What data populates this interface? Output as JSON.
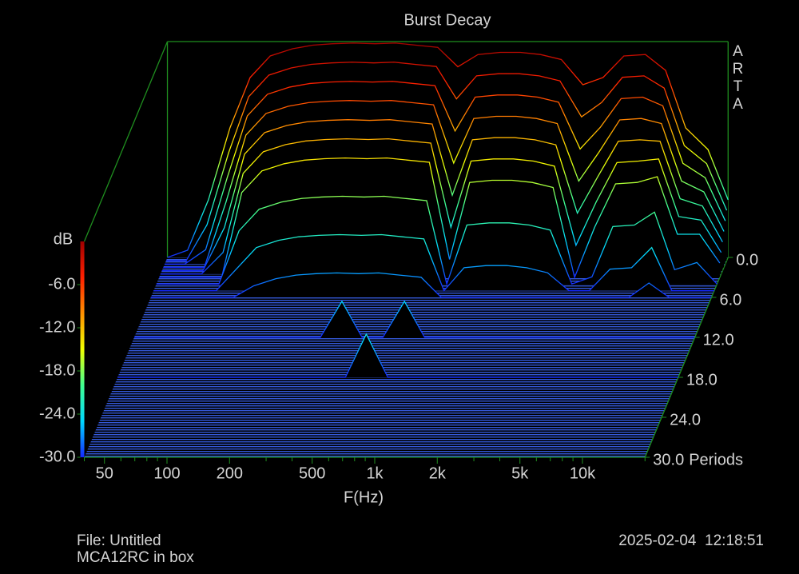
{
  "chart_data": {
    "type": "waterfall",
    "title": "Burst Decay",
    "watermark": "ARTA",
    "xlabel": "F(Hz)",
    "ylabel": "Periods",
    "zlabel": "dB",
    "file": "File: Untitled",
    "note": "MCA12RC in box",
    "timestamp": "2025-02-04  12:18:51",
    "xscale": "log",
    "xlim": [
      40,
      20000
    ],
    "xticks": [
      50,
      100,
      200,
      500,
      {
        "value": 1000,
        "label": "1k"
      },
      {
        "value": 2000,
        "label": "2k"
      },
      {
        "value": 5000,
        "label": "5k"
      },
      {
        "value": 10000,
        "label": "10k"
      }
    ],
    "xminor_ticks": [
      40,
      60,
      70,
      80,
      90,
      300,
      400,
      600,
      700,
      800,
      900,
      3000,
      4000,
      6000,
      7000,
      8000,
      9000,
      20000
    ],
    "ylim": [
      0,
      30
    ],
    "yticks": [
      {
        "value": 0,
        "label": "0.0"
      },
      {
        "value": 6,
        "label": "6.0"
      },
      {
        "value": 12,
        "label": "12.0"
      },
      {
        "value": 18,
        "label": "18.0"
      },
      {
        "value": 24,
        "label": "24.0"
      },
      {
        "value": 30,
        "label": "30.0"
      }
    ],
    "zlim": [
      -30,
      0
    ],
    "zticks": [
      {
        "value": -30,
        "label": "-30.0"
      },
      {
        "value": -24,
        "label": "-24.0"
      },
      {
        "value": -18,
        "label": "-18.0"
      },
      {
        "value": -12,
        "label": "-12.0"
      },
      {
        "value": -6,
        "label": "-6.0"
      }
    ],
    "colormap": [
      "#1428ff",
      "#00d8ff",
      "#40ff90",
      "#f0ff00",
      "#ff9000",
      "#ff2000",
      "#a00000"
    ],
    "axis_color": "#1f8f1f",
    "floor_color": "#3458d8",
    "x": [
      40,
      50,
      63,
      80,
      100,
      125,
      160,
      200,
      250,
      315,
      400,
      500,
      630,
      800,
      1000,
      1250,
      1600,
      2000,
      2500,
      3150,
      4000,
      5000,
      6300,
      8000,
      10000,
      12500,
      16000,
      20000
    ],
    "series": [
      {
        "period": 0,
        "values": [
          -30,
          -29,
          -22,
          -12,
          -5,
          -2,
          -1,
          -0.5,
          -0.3,
          -0.2,
          -0.3,
          -0.2,
          -0.5,
          -0.8,
          -3.5,
          -1.8,
          -1.5,
          -1.5,
          -1.8,
          -2.5,
          -6,
          -5,
          -2,
          -1.8,
          -4,
          -12,
          -15,
          -22
        ]
      },
      {
        "period": 0.5,
        "values": [
          -30,
          -30,
          -25,
          -15,
          -7.2,
          -4.2,
          -3.2,
          -2.7,
          -2.5,
          -2.4,
          -2.5,
          -2.4,
          -2.7,
          -3,
          -7.5,
          -4.3,
          -4,
          -4,
          -4.3,
          -5,
          -10,
          -8,
          -4.5,
          -4.3,
          -6,
          -14,
          -16.5,
          -23
        ]
      },
      {
        "period": 1,
        "values": [
          -30,
          -30,
          -28,
          -18,
          -9.4,
          -6.4,
          -5.4,
          -4.9,
          -4.7,
          -4.6,
          -4.7,
          -4.6,
          -4.9,
          -5.2,
          -11.5,
          -6.8,
          -6.5,
          -6.5,
          -6.8,
          -7.5,
          -14,
          -11,
          -7,
          -6.8,
          -8,
          -16,
          -18,
          -24
        ]
      },
      {
        "period": 1.5,
        "values": [
          -30,
          -30,
          -30,
          -21,
          -11.6,
          -8.6,
          -7.6,
          -7.1,
          -6.9,
          -6.8,
          -6.9,
          -6.8,
          -7.1,
          -7.4,
          -15.5,
          -9.3,
          -9,
          -9,
          -9.3,
          -10,
          -18,
          -14,
          -9.5,
          -9.3,
          -10,
          -18,
          -19.5,
          -25
        ]
      },
      {
        "period": 2,
        "values": [
          -30,
          -30,
          -30,
          -24,
          -13.8,
          -10.8,
          -9.8,
          -9.3,
          -9.1,
          -9,
          -9.1,
          -9,
          -9.3,
          -9.6,
          -19.5,
          -11.8,
          -11.5,
          -11.5,
          -11.8,
          -12.5,
          -22,
          -17,
          -12,
          -11.8,
          -12,
          -20,
          -21,
          -26
        ]
      },
      {
        "period": 2.5,
        "values": [
          -30,
          -30,
          -30,
          -27,
          -16,
          -13,
          -12,
          -11.5,
          -11.3,
          -11.2,
          -11.3,
          -11.2,
          -11.5,
          -11.8,
          -23.5,
          -14.3,
          -14,
          -14,
          -14.3,
          -15,
          -26,
          -20,
          -14.5,
          -14.3,
          -14,
          -22,
          -22.5,
          -27
        ]
      },
      {
        "period": 3,
        "values": [
          -30,
          -30,
          -30,
          -30,
          -18.2,
          -15.2,
          -14.2,
          -13.7,
          -13.5,
          -13.4,
          -13.5,
          -13.4,
          -13.7,
          -14,
          -27.5,
          -16.8,
          -16.5,
          -16.5,
          -16.8,
          -17.5,
          -30,
          -23,
          -17,
          -16.8,
          -16,
          -24,
          -24,
          -28
        ]
      },
      {
        "period": 4,
        "values": [
          -30,
          -30,
          -30,
          -30,
          -22.6,
          -19.6,
          -18.6,
          -18.1,
          -17.9,
          -17.8,
          -17.9,
          -17.8,
          -18.1,
          -18.4,
          -30,
          -21.8,
          -21.5,
          -21.5,
          -21.8,
          -22.5,
          -30,
          -29,
          -22,
          -21.8,
          -20,
          -28,
          -27,
          -30
        ]
      },
      {
        "period": 5,
        "values": [
          -30,
          -30,
          -30,
          -30,
          -27,
          -24,
          -23,
          -22.5,
          -22.3,
          -22.2,
          -22.3,
          -22.2,
          -22.5,
          -22.8,
          -30,
          -26.8,
          -26.5,
          -26.5,
          -26.8,
          -27.5,
          -30,
          -30,
          -27,
          -26.8,
          -24,
          -30,
          -30,
          -30
        ]
      },
      {
        "period": 6,
        "values": [
          -30,
          -30,
          -30,
          -30,
          -30,
          -28.4,
          -27.4,
          -26.9,
          -26.7,
          -26.6,
          -26.7,
          -26.6,
          -26.9,
          -27.2,
          -30,
          -30,
          -30,
          -30,
          -30,
          -30,
          -30,
          -30,
          -30,
          -30,
          -28,
          -30,
          -30,
          -30
        ]
      },
      {
        "period": 12,
        "values": [
          -30,
          -30,
          -30,
          -30,
          -30,
          -30,
          -30,
          -30,
          -30,
          -30,
          -25,
          -30,
          -30,
          -25,
          -30,
          -30,
          -30,
          -30,
          -30,
          -30,
          -30,
          -30,
          -30,
          -30,
          -30,
          -30,
          -30,
          -30
        ]
      },
      {
        "period": 18,
        "values": [
          -30,
          -30,
          -30,
          -30,
          -30,
          -30,
          -30,
          -30,
          -30,
          -30,
          -30,
          -30,
          -24,
          -30,
          -30,
          -30,
          -30,
          -30,
          -30,
          -30,
          -30,
          -30,
          -30,
          -30,
          -30,
          -30,
          -30,
          -30
        ]
      }
    ]
  }
}
